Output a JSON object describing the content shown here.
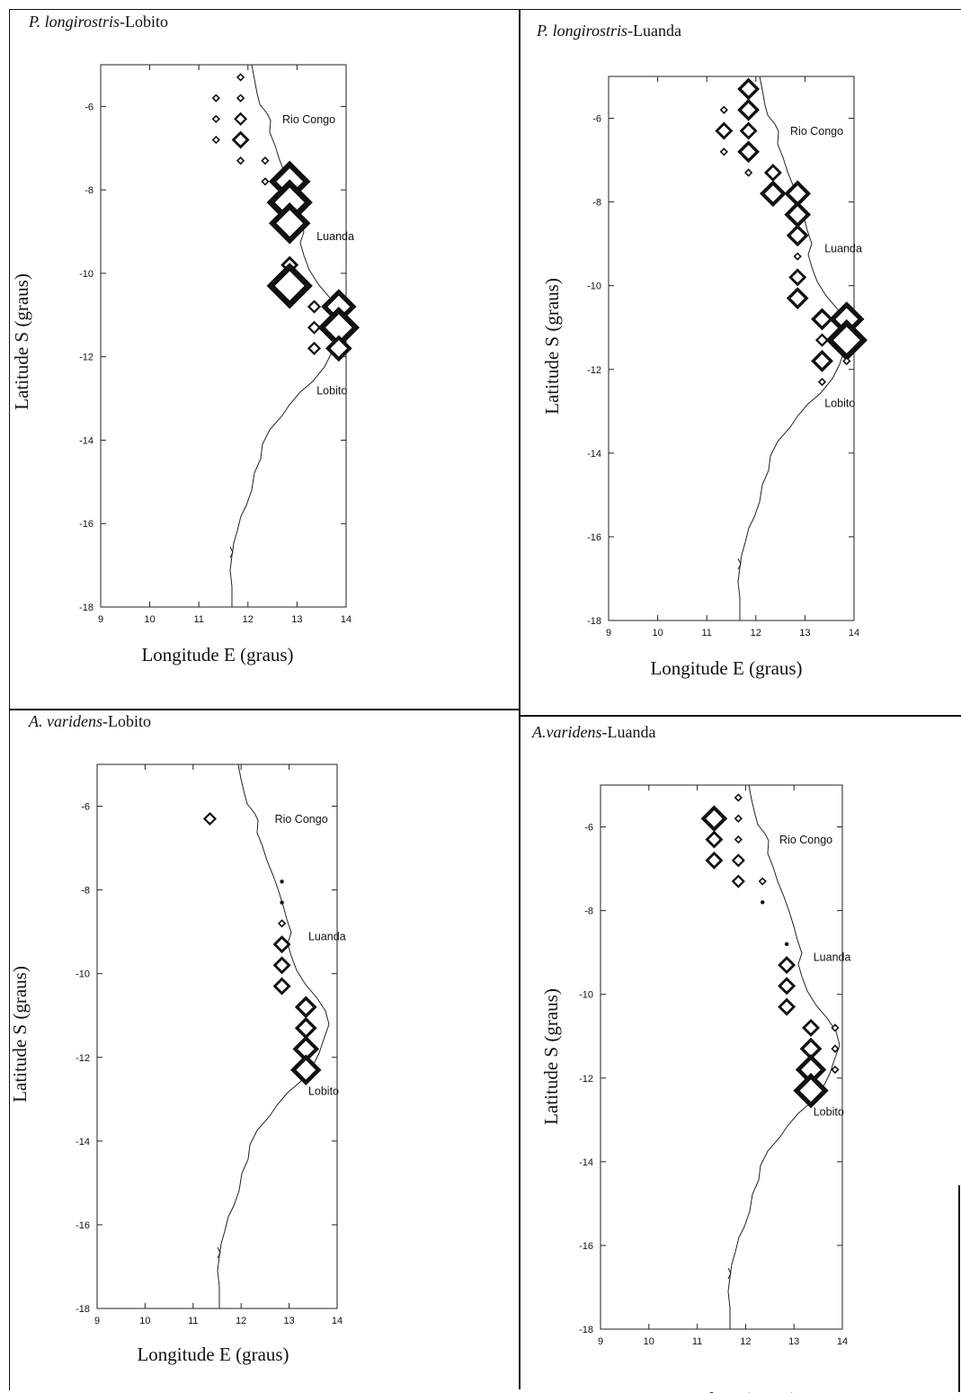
{
  "figure": {
    "panels": [
      {
        "id": "p-longirostris-lobito",
        "title_species": "P. longirostris",
        "title_site": "-Lobito",
        "chart_data": {
          "type": "scatter",
          "xlabel": "Longitude E (graus)",
          "ylabel": "Latitude S (graus)",
          "xlim": [
            9,
            14
          ],
          "ylim": [
            -18,
            -5
          ],
          "xticks": [
            "9",
            "10",
            "11",
            "12",
            "13",
            "14"
          ],
          "yticks": [
            "-6",
            "-8",
            "-10",
            "-12",
            "-14",
            "-16",
            "-18"
          ],
          "places": [
            {
              "name": "Rio Congo",
              "lon": 12.7,
              "lat": -6.4
            },
            {
              "name": "Luanda",
              "lon": 13.4,
              "lat": -9.2
            },
            {
              "name": "Lobito",
              "lon": 13.4,
              "lat": -12.9
            }
          ],
          "points": [
            {
              "lon": 11.85,
              "lat": -5.3,
              "s": 1
            },
            {
              "lon": 11.35,
              "lat": -5.8,
              "s": 1
            },
            {
              "lon": 11.85,
              "lat": -5.8,
              "s": 1
            },
            {
              "lon": 11.35,
              "lat": -6.3,
              "s": 1
            },
            {
              "lon": 11.85,
              "lat": -6.3,
              "s": 2
            },
            {
              "lon": 11.35,
              "lat": -6.8,
              "s": 1
            },
            {
              "lon": 11.85,
              "lat": -6.8,
              "s": 3
            },
            {
              "lon": 11.85,
              "lat": -7.3,
              "s": 1
            },
            {
              "lon": 12.35,
              "lat": -7.3,
              "s": 1
            },
            {
              "lon": 12.35,
              "lat": -7.8,
              "s": 1
            },
            {
              "lon": 12.85,
              "lat": -7.8,
              "s": 8
            },
            {
              "lon": 12.85,
              "lat": -8.3,
              "s": 9
            },
            {
              "lon": 12.85,
              "lat": -8.8,
              "s": 8
            },
            {
              "lon": 12.85,
              "lat": -9.8,
              "s": 3
            },
            {
              "lon": 12.85,
              "lat": -10.3,
              "s": 9
            },
            {
              "lon": 13.35,
              "lat": -10.8,
              "s": 2
            },
            {
              "lon": 13.85,
              "lat": -10.8,
              "s": 7
            },
            {
              "lon": 13.35,
              "lat": -11.3,
              "s": 2
            },
            {
              "lon": 13.85,
              "lat": -11.3,
              "s": 8
            },
            {
              "lon": 13.35,
              "lat": -11.8,
              "s": 2
            },
            {
              "lon": 13.85,
              "lat": -11.8,
              "s": 5
            }
          ]
        }
      },
      {
        "id": "p-longirostris-luanda",
        "title_species": "P. longirostris",
        "title_site": "-Luanda",
        "chart_data": {
          "type": "scatter",
          "xlabel": "Longitude E (graus)",
          "ylabel": "Latitude S (graus)",
          "xlim": [
            9,
            14
          ],
          "ylim": [
            -18,
            -5
          ],
          "xticks": [
            "9",
            "10",
            "11",
            "12",
            "13",
            "14"
          ],
          "yticks": [
            "-6",
            "-8",
            "-10",
            "-12",
            "-14",
            "-16",
            "-18"
          ],
          "places": [
            {
              "name": "Rio Congo",
              "lon": 12.7,
              "lat": -6.4
            },
            {
              "name": "Luanda",
              "lon": 13.4,
              "lat": -9.2
            },
            {
              "name": "Lobito",
              "lon": 13.4,
              "lat": -12.9
            }
          ],
          "points": [
            {
              "lon": 11.85,
              "lat": -5.3,
              "s": 4
            },
            {
              "lon": 11.35,
              "lat": -5.8,
              "s": 1
            },
            {
              "lon": 11.85,
              "lat": -5.8,
              "s": 4
            },
            {
              "lon": 11.35,
              "lat": -6.3,
              "s": 3
            },
            {
              "lon": 11.85,
              "lat": -6.3,
              "s": 3
            },
            {
              "lon": 11.35,
              "lat": -6.8,
              "s": 1
            },
            {
              "lon": 11.85,
              "lat": -6.8,
              "s": 4
            },
            {
              "lon": 11.85,
              "lat": -7.3,
              "s": 1
            },
            {
              "lon": 12.35,
              "lat": -7.3,
              "s": 3
            },
            {
              "lon": 12.35,
              "lat": -7.8,
              "s": 5
            },
            {
              "lon": 12.85,
              "lat": -7.8,
              "s": 5
            },
            {
              "lon": 12.85,
              "lat": -8.3,
              "s": 5
            },
            {
              "lon": 12.85,
              "lat": -8.8,
              "s": 4
            },
            {
              "lon": 12.85,
              "lat": -9.3,
              "s": 1
            },
            {
              "lon": 12.85,
              "lat": -9.8,
              "s": 3
            },
            {
              "lon": 12.85,
              "lat": -10.3,
              "s": 4
            },
            {
              "lon": 13.35,
              "lat": -10.8,
              "s": 4
            },
            {
              "lon": 13.85,
              "lat": -10.8,
              "s": 7
            },
            {
              "lon": 13.35,
              "lat": -11.3,
              "s": 2
            },
            {
              "lon": 13.85,
              "lat": -11.3,
              "s": 8
            },
            {
              "lon": 13.35,
              "lat": -11.8,
              "s": 4
            },
            {
              "lon": 13.85,
              "lat": -11.8,
              "s": 1
            },
            {
              "lon": 13.35,
              "lat": -12.3,
              "s": 1
            }
          ]
        }
      },
      {
        "id": "a-varidens-lobito",
        "title_species": "A. varidens",
        "title_site": "-Lobito",
        "chart_data": {
          "type": "scatter",
          "xlabel": "Longitude E (graus)",
          "ylabel": "Latitude S (graus)",
          "xlim": [
            9,
            14
          ],
          "ylim": [
            -18,
            -5
          ],
          "xticks": [
            "9",
            "10",
            "11",
            "12",
            "13",
            "14"
          ],
          "yticks": [
            "-6",
            "-8",
            "-10",
            "-12",
            "-14",
            "-16",
            "-18"
          ],
          "places": [
            {
              "name": "Rio Congo",
              "lon": 12.7,
              "lat": -6.4
            },
            {
              "name": "Luanda",
              "lon": 13.4,
              "lat": -9.2
            },
            {
              "name": "Lobito",
              "lon": 13.4,
              "lat": -12.9
            }
          ],
          "points": [
            {
              "lon": 11.35,
              "lat": -6.3,
              "s": 2
            },
            {
              "lon": 12.85,
              "lat": -7.8,
              "s": 0
            },
            {
              "lon": 12.85,
              "lat": -8.3,
              "s": 0
            },
            {
              "lon": 12.85,
              "lat": -8.8,
              "s": 1
            },
            {
              "lon": 12.85,
              "lat": -9.3,
              "s": 3
            },
            {
              "lon": 12.85,
              "lat": -9.8,
              "s": 3
            },
            {
              "lon": 12.85,
              "lat": -10.3,
              "s": 3
            },
            {
              "lon": 13.35,
              "lat": -10.8,
              "s": 4
            },
            {
              "lon": 13.35,
              "lat": -11.3,
              "s": 4
            },
            {
              "lon": 13.35,
              "lat": -11.8,
              "s": 5
            },
            {
              "lon": 13.35,
              "lat": -12.3,
              "s": 6
            }
          ]
        }
      },
      {
        "id": "a-varidens-luanda",
        "title_species": "A.varidens",
        "title_site": "-Luanda",
        "chart_data": {
          "type": "scatter",
          "xlabel": "Longitude E (graus)",
          "ylabel": "Latitude S (graus)",
          "xlim": [
            9,
            14
          ],
          "ylim": [
            -18,
            -5
          ],
          "xticks": [
            "9",
            "10",
            "11",
            "12",
            "13",
            "14"
          ],
          "yticks": [
            "-6",
            "-8",
            "-10",
            "-12",
            "-14",
            "-16",
            "-18"
          ],
          "places": [
            {
              "name": "Rio Congo",
              "lon": 12.7,
              "lat": -6.4
            },
            {
              "name": "Luanda",
              "lon": 13.4,
              "lat": -9.2
            },
            {
              "name": "Lobito",
              "lon": 13.4,
              "lat": -12.9
            }
          ],
          "points": [
            {
              "lon": 11.85,
              "lat": -5.3,
              "s": 1
            },
            {
              "lon": 11.35,
              "lat": -5.8,
              "s": 5
            },
            {
              "lon": 11.85,
              "lat": -5.8,
              "s": 1
            },
            {
              "lon": 11.35,
              "lat": -6.3,
              "s": 3
            },
            {
              "lon": 11.85,
              "lat": -6.3,
              "s": 1
            },
            {
              "lon": 11.35,
              "lat": -6.8,
              "s": 3
            },
            {
              "lon": 11.85,
              "lat": -6.8,
              "s": 2
            },
            {
              "lon": 11.85,
              "lat": -7.3,
              "s": 2
            },
            {
              "lon": 12.35,
              "lat": -7.3,
              "s": 1
            },
            {
              "lon": 12.35,
              "lat": -7.8,
              "s": 0
            },
            {
              "lon": 12.85,
              "lat": -8.8,
              "s": 0
            },
            {
              "lon": 12.85,
              "lat": -9.3,
              "s": 3
            },
            {
              "lon": 12.85,
              "lat": -9.8,
              "s": 3
            },
            {
              "lon": 12.85,
              "lat": -10.3,
              "s": 3
            },
            {
              "lon": 13.35,
              "lat": -10.8,
              "s": 3
            },
            {
              "lon": 13.85,
              "lat": -10.8,
              "s": 1
            },
            {
              "lon": 13.35,
              "lat": -11.3,
              "s": 4
            },
            {
              "lon": 13.85,
              "lat": -11.3,
              "s": 1
            },
            {
              "lon": 13.35,
              "lat": -11.8,
              "s": 6
            },
            {
              "lon": 13.85,
              "lat": -11.8,
              "s": 1
            },
            {
              "lon": 13.35,
              "lat": -12.3,
              "s": 7
            }
          ]
        }
      }
    ]
  }
}
